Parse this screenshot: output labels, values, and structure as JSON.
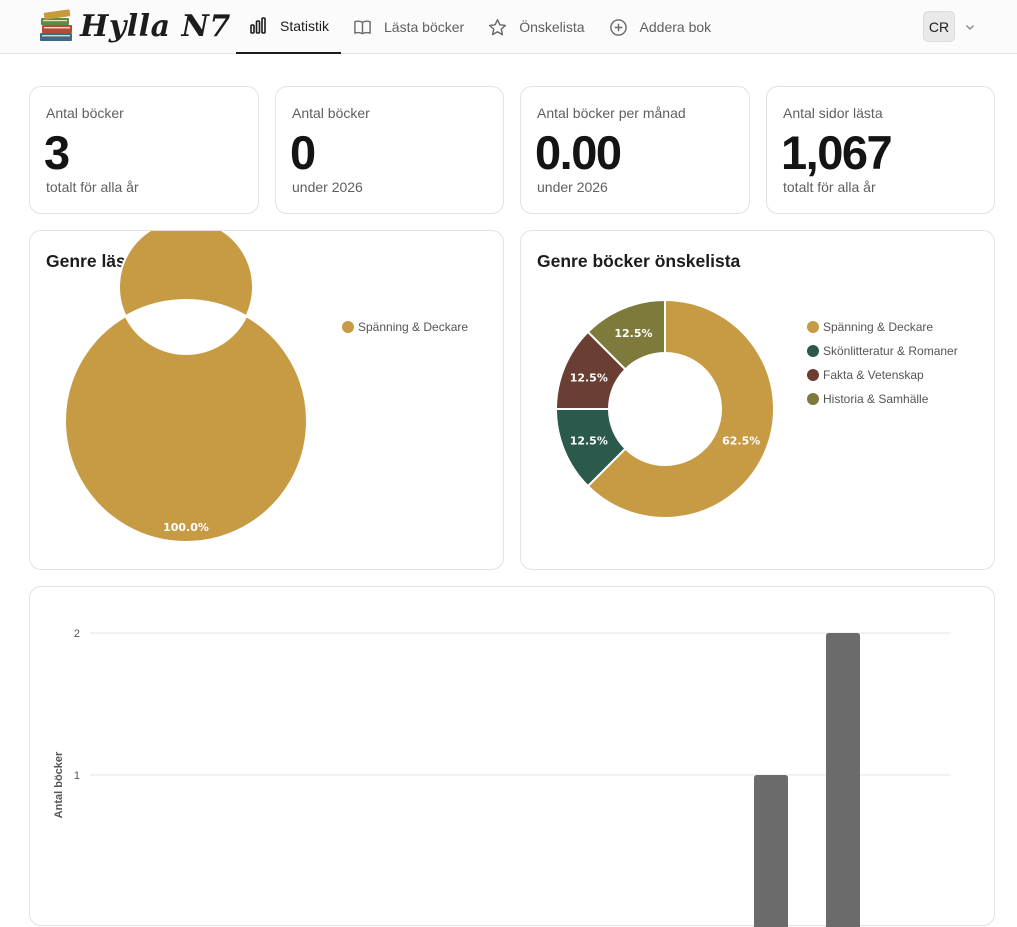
{
  "app": {
    "name": "Hylla N7"
  },
  "nav": {
    "items": [
      {
        "label": "Statistik",
        "icon": "bar-chart-icon",
        "active": true
      },
      {
        "label": "Lästa böcker",
        "icon": "book-icon",
        "active": false
      },
      {
        "label": "Önskelista",
        "icon": "star-icon",
        "active": false
      },
      {
        "label": "Addera bok",
        "icon": "plus-circle-icon",
        "active": false
      }
    ]
  },
  "user": {
    "initials": "CR"
  },
  "stats": [
    {
      "label": "Antal böcker",
      "value": "3",
      "sub": "totalt för alla år"
    },
    {
      "label": "Antal böcker",
      "value": "0",
      "sub": "under 2026"
    },
    {
      "label": "Antal böcker per månad",
      "value": "0.00",
      "sub": "under 2026"
    },
    {
      "label": "Antal sidor lästa",
      "value": "1,067",
      "sub": "totalt för alla år"
    }
  ],
  "colors": {
    "spanning": "#c79b44",
    "skonlitteratur": "#2b5a4c",
    "fakta": "#6b3e34",
    "historia": "#7d7a3c",
    "bar": "#6b6b6b"
  },
  "chart_data": [
    {
      "type": "pie",
      "title": "Genre lästa böcker",
      "labels": [
        "Spänning & Deckare"
      ],
      "values": [
        100.0
      ],
      "data_labels": [
        "100.0%"
      ],
      "colors": [
        "#c79b44"
      ],
      "legend": "right"
    },
    {
      "type": "pie",
      "title": "Genre böcker önskelista",
      "labels": [
        "Spänning & Deckare",
        "Skönlitteratur & Romaner",
        "Fakta & Vetenskap",
        "Historia & Samhälle"
      ],
      "values": [
        62.5,
        12.5,
        12.5,
        12.5
      ],
      "data_labels": [
        "62.5%",
        "12.5%",
        "12.5%",
        "12.5%"
      ],
      "colors": [
        "#c79b44",
        "#2b5a4c",
        "#6b3e34",
        "#7d7a3c"
      ],
      "legend": "right"
    },
    {
      "type": "bar",
      "title": "",
      "ylabel": "Antal böcker",
      "ylim": [
        0,
        2
      ],
      "yticks": [
        "1",
        "2"
      ],
      "values": [
        1,
        2
      ],
      "grid": true
    }
  ]
}
